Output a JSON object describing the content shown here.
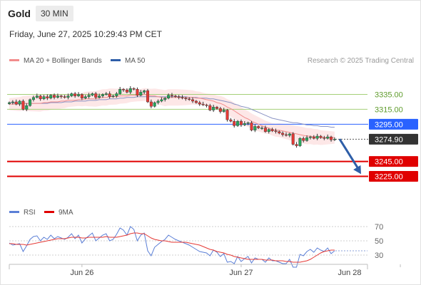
{
  "header": {
    "symbol": "Gold",
    "timeframe": "30 MIN",
    "timestamp": "Friday, June 27, 2025 10:29:43 PM CET"
  },
  "legend": {
    "ma20_bb": "MA 20 + Bollinger Bands",
    "ma50": "MA 50",
    "credit": "Research © 2025 Trading Central"
  },
  "rsi_legend": {
    "rsi": "RSI",
    "ma": "9MA"
  },
  "colors": {
    "up": "#26a65b",
    "down": "#e53935",
    "ma20": "#f28c8c",
    "band": "#fde3e3",
    "ma50": "#8a93c4",
    "resistance": "#a5cf78",
    "price": "#2962ff",
    "support": "#e00000",
    "arrow": "#2e5ea8",
    "rsi": "#5b7fd6",
    "rsi_ma": "#e53935"
  },
  "chart_data": {
    "type": "candlestick",
    "y_range": [
      3213,
      3347
    ],
    "x_labels": [
      {
        "label": "Jun 26",
        "index": 21
      },
      {
        "label": "Jun 27",
        "index": 67
      },
      {
        "label": "Jun 28",
        "index": 113
      }
    ],
    "levels": [
      {
        "value": 3335.0,
        "label": "3335.00",
        "kind": "resistance"
      },
      {
        "value": 3315.0,
        "label": "3315.00",
        "kind": "resistance"
      },
      {
        "value": 3295.0,
        "label": "3295.00",
        "kind": "price"
      },
      {
        "value": 3274.9,
        "label": "3274.90",
        "kind": "last"
      },
      {
        "value": 3245.0,
        "label": "3245.00",
        "kind": "support"
      },
      {
        "value": 3225.0,
        "label": "3225.00",
        "kind": "support"
      }
    ],
    "forecast": {
      "from": 3275,
      "to": 3228
    },
    "close": [
      3324,
      3325,
      3322,
      3326,
      3315,
      3320,
      3328,
      3331,
      3333,
      3329,
      3332,
      3330,
      3334,
      3331,
      3333,
      3332,
      3331,
      3333,
      3336,
      3333,
      3335,
      3330,
      3332,
      3334,
      3336,
      3331,
      3333,
      3335,
      3336,
      3332,
      3333,
      3336,
      3342,
      3341,
      3338,
      3343,
      3342,
      3334,
      3338,
      3340,
      3325,
      3319,
      3324,
      3326,
      3328,
      3330,
      3334,
      3333,
      3332,
      3331,
      3330,
      3329,
      3328,
      3326,
      3324,
      3322,
      3321,
      3320,
      3314,
      3318,
      3316,
      3312,
      3314,
      3301,
      3299,
      3293,
      3299,
      3294,
      3296,
      3297,
      3287,
      3292,
      3290,
      3290,
      3285,
      3288,
      3286,
      3285,
      3283,
      3281,
      3280,
      3282,
      3268,
      3266,
      3276,
      3273,
      3277,
      3278,
      3276,
      3279,
      3277,
      3276,
      3278,
      3274,
      3275
    ],
    "ma20": [
      3322,
      3322,
      3322,
      3322,
      3323,
      3323,
      3323,
      3323,
      3323,
      3323,
      3324,
      3324,
      3325,
      3325,
      3325,
      3326,
      3326,
      3327,
      3327,
      3327,
      3328,
      3328,
      3329,
      3329,
      3329,
      3329,
      3330,
      3331,
      3331,
      3332,
      3332,
      3332,
      3333,
      3333,
      3333,
      3334,
      3334,
      3334,
      3334,
      3335,
      3334,
      3333,
      3333,
      3332,
      3331,
      3330,
      3331,
      3331,
      3331,
      3331,
      3331,
      3331,
      3331,
      3331,
      3330,
      3330,
      3329,
      3328,
      3327,
      3326,
      3324,
      3323,
      3321,
      3318,
      3316,
      3313,
      3310,
      3307,
      3304,
      3302,
      3299,
      3297,
      3295,
      3293,
      3291,
      3290,
      3288,
      3287,
      3287,
      3286,
      3285,
      3284,
      3283,
      3282,
      3281,
      3280,
      3279,
      3279,
      3278,
      3278,
      3277,
      3277,
      3277,
      3277,
      3277
    ],
    "ma50": [
      3324,
      3324,
      3323,
      3323,
      3323,
      3323,
      3323,
      3323,
      3323,
      3323,
      3323,
      3323,
      3324,
      3324,
      3324,
      3324,
      3325,
      3325,
      3325,
      3326,
      3326,
      3326,
      3326,
      3327,
      3327,
      3327,
      3328,
      3328,
      3328,
      3329,
      3329,
      3329,
      3330,
      3330,
      3331,
      3331,
      3331,
      3332,
      3332,
      3332,
      3332,
      3332,
      3332,
      3332,
      3332,
      3332,
      3332,
      3332,
      3332,
      3332,
      3332,
      3332,
      3331,
      3331,
      3331,
      3330,
      3330,
      3330,
      3329,
      3329,
      3328,
      3327,
      3326,
      3325,
      3324,
      3322,
      3321,
      3319,
      3318,
      3317,
      3315,
      3313,
      3311,
      3309,
      3307,
      3305,
      3303,
      3302,
      3301,
      3300,
      3299,
      3298,
      3297,
      3297,
      3296,
      3295,
      3294,
      3294,
      3293,
      3293,
      3292,
      3292,
      3292,
      3291,
      3291
    ],
    "rsi_axis": {
      "ticks": [
        70,
        50,
        30
      ],
      "range": [
        20,
        80
      ]
    },
    "rsi": [
      47,
      44,
      45,
      46,
      35,
      43,
      52,
      56,
      57,
      50,
      55,
      52,
      58,
      53,
      56,
      54,
      52,
      55,
      60,
      53,
      58,
      47,
      53,
      57,
      61,
      50,
      54,
      58,
      60,
      50,
      52,
      59,
      68,
      65,
      58,
      70,
      66,
      50,
      58,
      61,
      36,
      29,
      41,
      45,
      49,
      52,
      58,
      55,
      52,
      50,
      48,
      46,
      44,
      41,
      38,
      35,
      34,
      33,
      29,
      37,
      34,
      28,
      32,
      20,
      21,
      18,
      28,
      21,
      25,
      28,
      19,
      26,
      24,
      24,
      20,
      26,
      22,
      22,
      20,
      18,
      18,
      24,
      13,
      13,
      31,
      29,
      35,
      38,
      34,
      40,
      37,
      35,
      40,
      32,
      36
    ],
    "rsi_ma": [
      46,
      46,
      45,
      45,
      45,
      44,
      45,
      46,
      47,
      48,
      49,
      50,
      51,
      52,
      53,
      53,
      53,
      54,
      55,
      55,
      55,
      54,
      54,
      55,
      55,
      55,
      55,
      55,
      56,
      55,
      55,
      55,
      56,
      57,
      58,
      60,
      61,
      61,
      60,
      60,
      57,
      54,
      52,
      51,
      50,
      50,
      49,
      48,
      48,
      48,
      48,
      48,
      47,
      46,
      45,
      44,
      42,
      40,
      38,
      37,
      35,
      34,
      33,
      31,
      30,
      28,
      27,
      26,
      25,
      24,
      24,
      24,
      24,
      24,
      23,
      23,
      23,
      22,
      22,
      22,
      21,
      21,
      20,
      20,
      20,
      21,
      22,
      24,
      27,
      30,
      33,
      35,
      36,
      37,
      37
    ]
  }
}
